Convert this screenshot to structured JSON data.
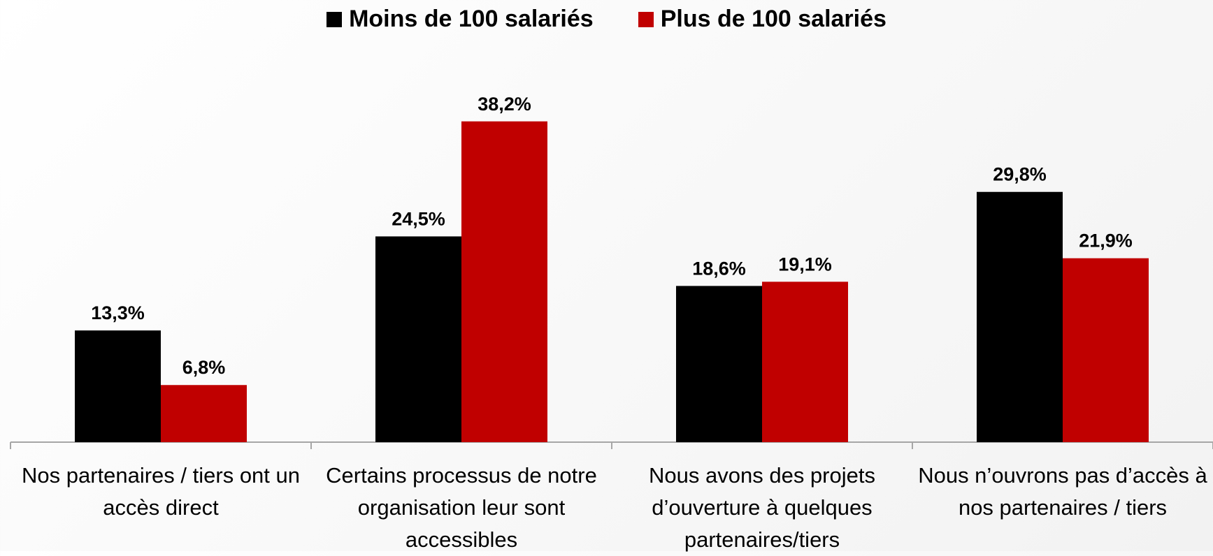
{
  "chart_data": {
    "type": "bar",
    "categories": [
      "Nos partenaires / tiers ont un accès direct",
      "Certains processus de notre organisation leur sont accessibles",
      "Nous avons des projets d’ouverture à quelques partenaires/tiers",
      "Nous n’ouvrons pas d’accès à nos partenaires / tiers"
    ],
    "series": [
      {
        "name": "Moins de 100 salariés",
        "color": "#000000",
        "values": [
          13.3,
          24.5,
          18.6,
          29.8
        ],
        "value_labels": [
          "13,3%",
          "24,5%",
          "18,6%",
          "29,8%"
        ]
      },
      {
        "name": "Plus de 100 salariés",
        "color": "#c00000",
        "values": [
          6.8,
          38.2,
          19.1,
          21.9
        ],
        "value_labels": [
          "6,8%",
          "38,2%",
          "19,1%",
          "21,9%"
        ]
      }
    ],
    "ylim": [
      0,
      45
    ],
    "legend": "top"
  }
}
